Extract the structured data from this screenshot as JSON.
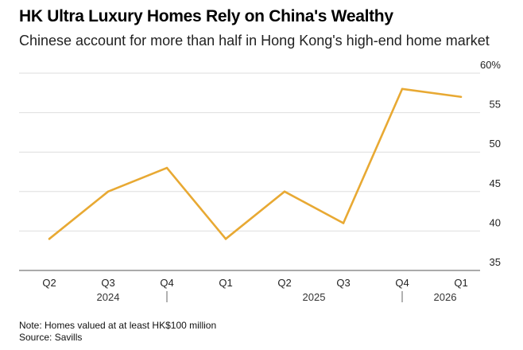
{
  "title": "HK Ultra Luxury Homes Rely on China's Wealthy",
  "subtitle": "Chinese account for more than half in Hong Kong's high-end home market",
  "notes": {
    "note": "Note: Homes valued at at least HK$100 million",
    "source": "Source: Savills"
  },
  "colors": {
    "series": "#e8a933",
    "grid": "#dedede"
  },
  "chart_data": {
    "type": "line",
    "title": "HK Ultra Luxury Homes Rely on China's Wealthy",
    "subtitle": "Chinese account for more than half in Hong Kong's high-end home market",
    "categories": [
      "Q2",
      "Q3",
      "Q4",
      "Q1",
      "Q2",
      "Q3",
      "Q4",
      "Q1"
    ],
    "year_labels": [
      "2024",
      "2025",
      "2026"
    ],
    "yticks": [
      "35",
      "40",
      "45",
      "50",
      "55",
      "60%"
    ],
    "ylim": [
      35,
      60
    ],
    "grid": true,
    "series": [
      {
        "values": [
          39,
          45,
          48,
          39,
          45,
          41,
          58,
          57
        ]
      }
    ]
  }
}
